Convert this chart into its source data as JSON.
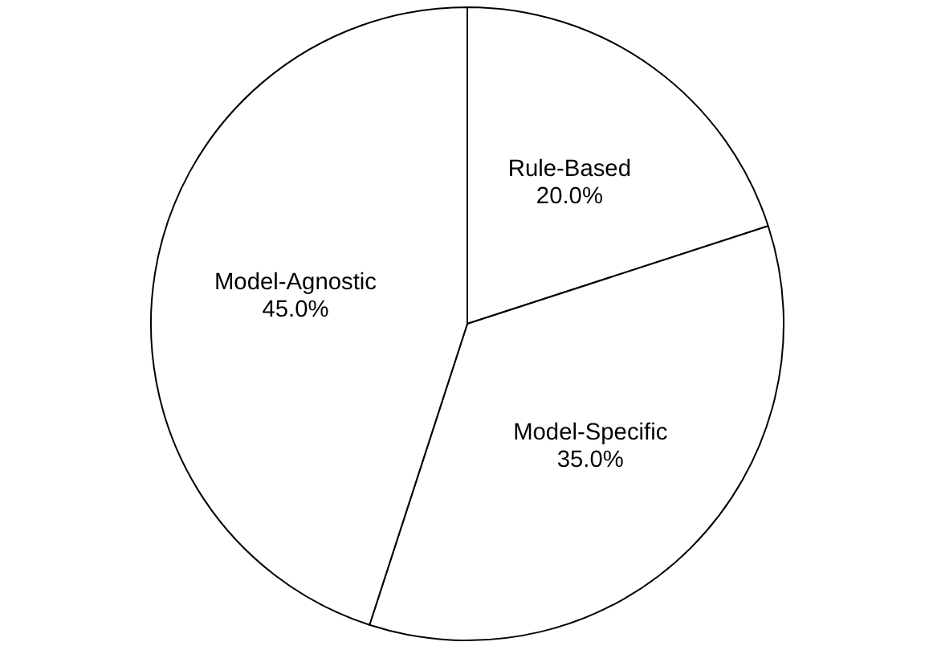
{
  "chart_data": {
    "type": "pie",
    "categories": [
      "Rule-Based",
      "Model-Specific",
      "Model-Agnostic"
    ],
    "values": [
      20.0,
      35.0,
      45.0
    ],
    "colors": [
      "#ffffff",
      "#ffffff",
      "#ffffff"
    ],
    "value_labels": [
      "20.0%",
      "35.0%",
      "45.0%"
    ]
  }
}
